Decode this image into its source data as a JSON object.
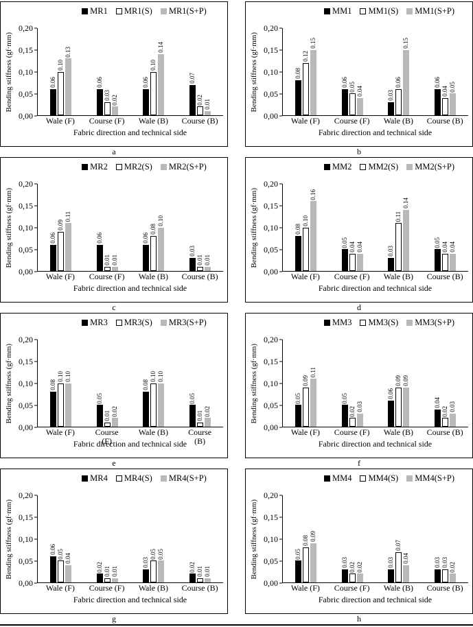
{
  "axis": {
    "ylabel": "Bending stiffness (gf·mm)",
    "xlabel": "Fabric direction and technical side",
    "ytick_labels": [
      "0,00",
      "0,05",
      "0,10",
      "0,15",
      "0,20"
    ]
  },
  "series_style": {
    "colors": [
      "#000000",
      "#ffffff",
      "#b9b9b9"
    ],
    "white_bar_border": "#000000"
  },
  "panel_letters": [
    "a",
    "b",
    "c",
    "d",
    "e",
    "f",
    "g",
    "h"
  ],
  "chart_data": [
    {
      "type": "bar",
      "panel_label": "a",
      "ylabel": "Bending stiffness (gf·mm)",
      "xlabel": "Fabric direction and technical side",
      "ylim": [
        0,
        0.2
      ],
      "yticks": [
        0,
        0.05,
        0.1,
        0.15,
        0.2
      ],
      "legend_position": "top",
      "categories": [
        "Wale (F)",
        "Course (F)",
        "Wale (B)",
        "Course (B)"
      ],
      "series": [
        {
          "name": "MR1",
          "values": [
            0.06,
            0.06,
            0.06,
            0.07
          ]
        },
        {
          "name": "MR1(S)",
          "values": [
            0.1,
            0.03,
            0.1,
            0.02
          ]
        },
        {
          "name": "MR1(S+P)",
          "values": [
            0.13,
            0.02,
            0.14,
            0.01
          ]
        }
      ]
    },
    {
      "type": "bar",
      "panel_label": "b",
      "ylabel": "Bending stiffness (gf·mm)",
      "xlabel": "Fabric direction and technical side",
      "ylim": [
        0,
        0.2
      ],
      "yticks": [
        0,
        0.05,
        0.1,
        0.15,
        0.2
      ],
      "legend_position": "top",
      "categories": [
        "Wale (F)",
        "Course (F)",
        "Wale (B)",
        "Course (B)"
      ],
      "series": [
        {
          "name": "MM1",
          "values": [
            0.08,
            0.06,
            0.03,
            0.06
          ]
        },
        {
          "name": "MM1(S)",
          "values": [
            0.12,
            0.05,
            0.06,
            0.04
          ]
        },
        {
          "name": "MM1(S+P)",
          "values": [
            0.15,
            0.04,
            0.15,
            0.05
          ]
        }
      ]
    },
    {
      "type": "bar",
      "panel_label": "c",
      "ylabel": "Bending stiffness (gf·mm)",
      "xlabel": "Fabric direction and technical side",
      "ylim": [
        0,
        0.2
      ],
      "yticks": [
        0,
        0.05,
        0.1,
        0.15,
        0.2
      ],
      "legend_position": "top",
      "categories": [
        "Wale (F)",
        "Course (F)",
        "Wale (B)",
        "Course (B)"
      ],
      "series": [
        {
          "name": "MR2",
          "values": [
            0.06,
            0.06,
            0.06,
            0.03
          ]
        },
        {
          "name": "MR2(S)",
          "values": [
            0.09,
            0.01,
            0.08,
            0.01
          ]
        },
        {
          "name": "MR2(S+P)",
          "values": [
            0.11,
            0.01,
            0.1,
            0.01
          ]
        }
      ]
    },
    {
      "type": "bar",
      "panel_label": "d",
      "ylabel": "Bending stiffness (gf·mm)",
      "xlabel": "Fabric direction and technical side",
      "ylim": [
        0,
        0.2
      ],
      "yticks": [
        0,
        0.05,
        0.1,
        0.15,
        0.2
      ],
      "legend_position": "top",
      "categories": [
        "Wale (F)",
        "Course (F)",
        "Wale (B)",
        "Course (B)"
      ],
      "series": [
        {
          "name": "MM2",
          "values": [
            0.08,
            0.05,
            0.03,
            0.05
          ]
        },
        {
          "name": "MM2(S)",
          "values": [
            0.1,
            0.04,
            0.11,
            0.04
          ]
        },
        {
          "name": "MM2(S+P)",
          "values": [
            0.16,
            0.04,
            0.14,
            0.04
          ]
        }
      ]
    },
    {
      "type": "bar",
      "panel_label": "e",
      "xtick_wrap": true,
      "ylabel": "Bending stiffness (gf·mm)",
      "xlabel": "Fabric direction and technical side",
      "ylim": [
        0,
        0.2
      ],
      "yticks": [
        0,
        0.05,
        0.1,
        0.15,
        0.2
      ],
      "legend_position": "top",
      "categories": [
        "Wale (F)",
        "Course (F)",
        "Wale (B)",
        "Course (B)"
      ],
      "series": [
        {
          "name": "MR3",
          "values": [
            0.08,
            0.05,
            0.08,
            0.05
          ]
        },
        {
          "name": "MR3(S)",
          "values": [
            0.1,
            0.01,
            0.1,
            0.01
          ]
        },
        {
          "name": "MR3(S+P)",
          "values": [
            0.1,
            0.02,
            0.1,
            0.02
          ]
        }
      ]
    },
    {
      "type": "bar",
      "panel_label": "f",
      "ylabel": "Bending stiffness (gf·mm)",
      "xlabel": "Fabric direction and technical side",
      "ylim": [
        0,
        0.2
      ],
      "yticks": [
        0,
        0.05,
        0.1,
        0.15,
        0.2
      ],
      "legend_position": "top",
      "categories": [
        "Wale (F)",
        "Course (F)",
        "Wale (B)",
        "Course (B)"
      ],
      "series": [
        {
          "name": "MM3",
          "values": [
            0.05,
            0.05,
            0.06,
            0.04
          ]
        },
        {
          "name": "MM3(S)",
          "values": [
            0.09,
            0.02,
            0.09,
            0.02
          ]
        },
        {
          "name": "MM3(S+P)",
          "values": [
            0.11,
            0.03,
            0.09,
            0.03
          ]
        }
      ]
    },
    {
      "type": "bar",
      "panel_label": "g",
      "ylabel": "Bending stiffness (gf·mm)",
      "xlabel": "Fabric direction and technical side",
      "ylim": [
        0,
        0.2
      ],
      "yticks": [
        0,
        0.05,
        0.1,
        0.15,
        0.2
      ],
      "legend_position": "top",
      "categories": [
        "Wale (F)",
        "Course (F)",
        "Wale (B)",
        "Course (B)"
      ],
      "series": [
        {
          "name": "MR4",
          "values": [
            0.06,
            0.02,
            0.03,
            0.02
          ]
        },
        {
          "name": "MR4(S)",
          "values": [
            0.05,
            0.01,
            0.05,
            0.01
          ]
        },
        {
          "name": "MR4(S+P)",
          "values": [
            0.04,
            0.01,
            0.05,
            0.01
          ]
        }
      ]
    },
    {
      "type": "bar",
      "panel_label": "h",
      "ylabel": "Bending stiffness (gf·mm)",
      "xlabel": "Fabric direction and technical side",
      "ylim": [
        0,
        0.2
      ],
      "yticks": [
        0,
        0.05,
        0.1,
        0.15,
        0.2
      ],
      "legend_position": "top",
      "categories": [
        "Wale (F)",
        "Course (F)",
        "Wale (B)",
        "Course (B)"
      ],
      "series": [
        {
          "name": "MM4",
          "values": [
            0.05,
            0.03,
            0.03,
            0.03
          ]
        },
        {
          "name": "MM4(S)",
          "values": [
            0.08,
            0.02,
            0.07,
            0.03
          ]
        },
        {
          "name": "MM4(S+P)",
          "values": [
            0.09,
            0.02,
            0.04,
            0.02
          ]
        }
      ]
    }
  ]
}
